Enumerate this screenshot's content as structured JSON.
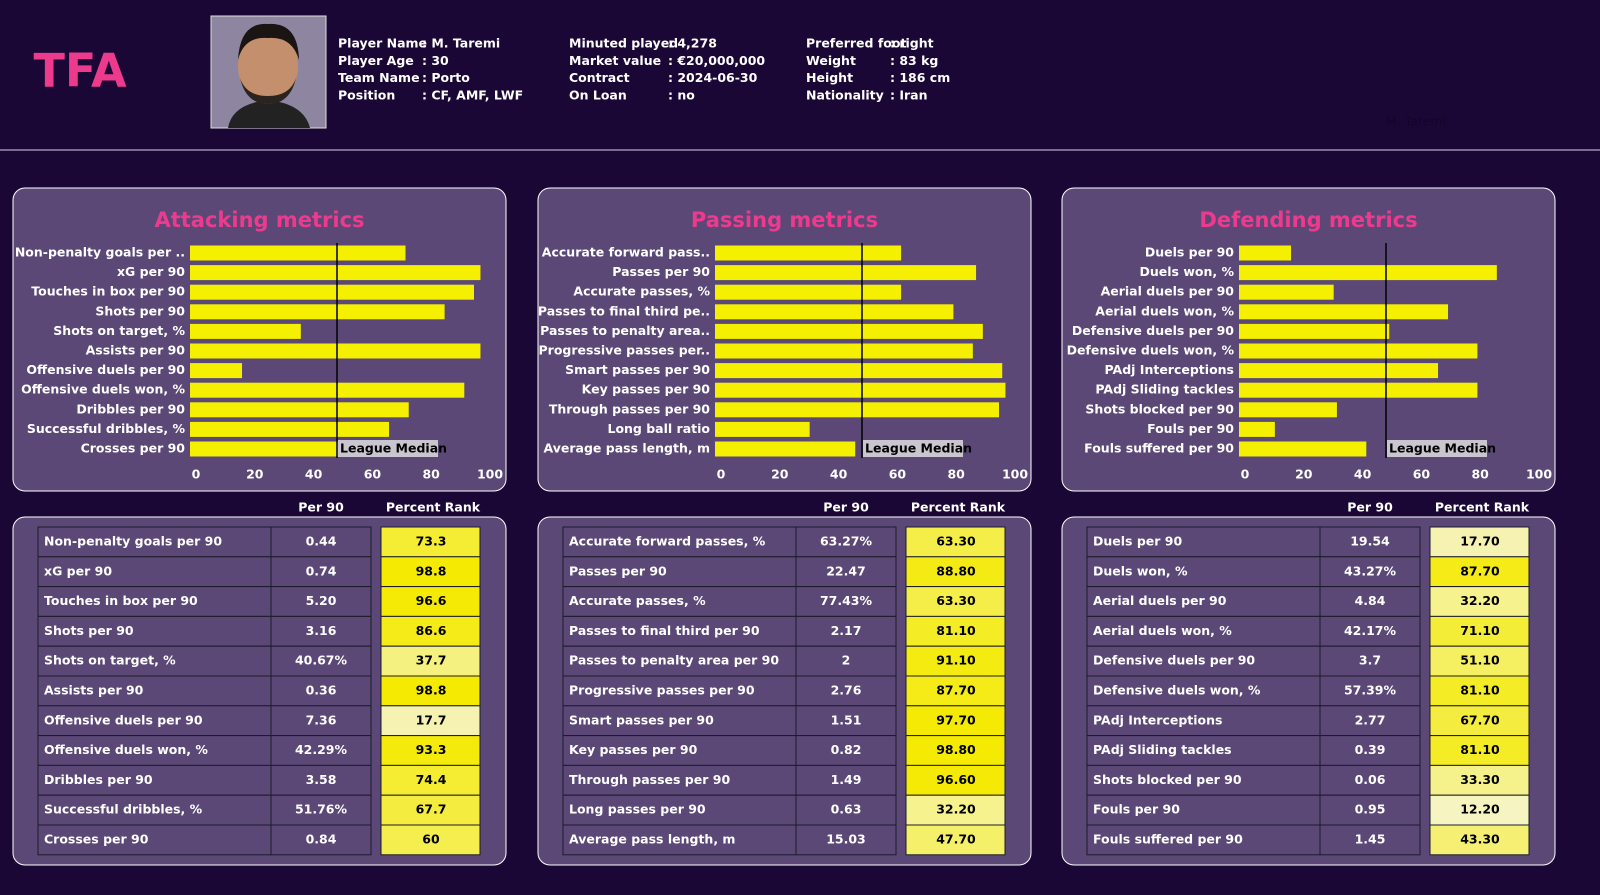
{
  "header": {
    "logo": "TFA",
    "watermark": "M. Taremi",
    "info": [
      [
        {
          "label": "Player Name",
          "value": ": M. Taremi"
        },
        {
          "label": "Player Age",
          "value": ": 30"
        },
        {
          "label": "Team Name",
          "value": ": Porto"
        },
        {
          "label": "Position",
          "value": ": CF, AMF, LWF"
        }
      ],
      [
        {
          "label": "Minuted played",
          "value": ": 4,278"
        },
        {
          "label": "Market value",
          "value": ": €20,000,000"
        },
        {
          "label": "Contract",
          "value": ": 2024-06-30"
        },
        {
          "label": "On Loan",
          "value": ": no"
        }
      ],
      [
        {
          "label": "Preferred foot",
          "value": ": right"
        },
        {
          "label": "Weight",
          "value": ": 83 kg"
        },
        {
          "label": "Height",
          "value": ": 186 cm"
        },
        {
          "label": "Nationality",
          "value": ": Iran"
        }
      ]
    ]
  },
  "chart_data": [
    {
      "type": "bar",
      "title": "Attacking metrics",
      "categories": [
        "Non-penalty goals per ..",
        "xG per 90",
        "Touches in box per 90",
        "Shots per 90",
        "Shots on target, %",
        "Assists per 90",
        "Offensive duels per 90",
        "Offensive duels won, %",
        "Dribbles per 90",
        "Successful dribbles, %",
        "Crosses per 90"
      ],
      "values": [
        73.3,
        98.8,
        96.6,
        86.6,
        37.7,
        98.8,
        17.7,
        93.3,
        74.4,
        67.7,
        60
      ],
      "color": "#f5ef00",
      "xlim": [
        0,
        100
      ],
      "xticks": [
        0,
        20,
        40,
        60,
        80,
        100
      ],
      "annotations": [
        {
          "label": "League Median",
          "x": 50
        }
      ]
    },
    {
      "type": "bar",
      "title": "Passing metrics",
      "categories": [
        "Accurate forward pass..",
        "Passes per 90",
        "Accurate passes, %",
        "Passes to final third pe..",
        "Passes to penalty area..",
        "Progressive passes per..",
        "Smart passes per 90",
        "Key passes per 90",
        "Through passes per 90",
        "Long ball ratio",
        "Average pass length, m"
      ],
      "values": [
        63.3,
        88.8,
        63.3,
        81.1,
        91.1,
        87.7,
        97.7,
        98.8,
        96.6,
        32.2,
        47.7
      ],
      "color": "#f5ef00",
      "xlim": [
        0,
        100
      ],
      "xticks": [
        0,
        20,
        40,
        60,
        80,
        100
      ],
      "annotations": [
        {
          "label": "League Median",
          "x": 50
        }
      ]
    },
    {
      "type": "bar",
      "title": "Defending metrics",
      "categories": [
        "Duels per 90",
        "Duels won, %",
        "Aerial duels per 90",
        "Aerial duels won, %",
        "Defensive duels per 90",
        "Defensive duels won, %",
        "PAdj Interceptions",
        "PAdj Sliding tackles",
        "Shots blocked per 90",
        "Fouls per 90",
        "Fouls suffered per 90"
      ],
      "values": [
        17.7,
        87.7,
        32.2,
        71.1,
        51.1,
        81.1,
        67.7,
        81.1,
        33.3,
        12.2,
        43.3
      ],
      "color": "#f5ef00",
      "xlim": [
        0,
        100
      ],
      "xticks": [
        0,
        20,
        40,
        60,
        80,
        100
      ],
      "annotations": [
        {
          "label": "League Median",
          "x": 50
        }
      ]
    }
  ],
  "tables": [
    {
      "columns": [
        "Per 90",
        "Percent Rank"
      ],
      "rows": [
        [
          "Non-penalty goals per 90",
          "0.44",
          "73.3"
        ],
        [
          "xG per 90",
          "0.74",
          "98.8"
        ],
        [
          "Touches in box per 90",
          "5.20",
          "96.6"
        ],
        [
          "Shots per 90",
          "3.16",
          "86.6"
        ],
        [
          "Shots on target, %",
          "40.67%",
          "37.7"
        ],
        [
          "Assists per 90",
          "0.36",
          "98.8"
        ],
        [
          "Offensive duels per 90",
          "7.36",
          "17.7"
        ],
        [
          "Offensive duels won, %",
          "42.29%",
          "93.3"
        ],
        [
          "Dribbles per 90",
          "3.58",
          "74.4"
        ],
        [
          "Successful dribbles, %",
          "51.76%",
          "67.7"
        ],
        [
          "Crosses per 90",
          "0.84",
          "60"
        ]
      ]
    },
    {
      "columns": [
        "Per 90",
        "Percent Rank"
      ],
      "rows": [
        [
          "Accurate forward passes, %",
          "63.27%",
          "63.30"
        ],
        [
          "Passes per 90",
          "22.47",
          "88.80"
        ],
        [
          "Accurate passes, %",
          "77.43%",
          "63.30"
        ],
        [
          "Passes to final third per 90",
          "2.17",
          "81.10"
        ],
        [
          "Passes to penalty area per 90",
          "2",
          "91.10"
        ],
        [
          "Progressive passes per 90",
          "2.76",
          "87.70"
        ],
        [
          "Smart passes per 90",
          "1.51",
          "97.70"
        ],
        [
          "Key passes per 90",
          "0.82",
          "98.80"
        ],
        [
          "Through passes per 90",
          "1.49",
          "96.60"
        ],
        [
          "Long passes per 90",
          "0.63",
          "32.20"
        ],
        [
          "Average pass length, m",
          "15.03",
          "47.70"
        ]
      ]
    },
    {
      "columns": [
        "Per 90",
        "Percent Rank"
      ],
      "rows": [
        [
          "Duels per 90",
          "19.54",
          "17.70"
        ],
        [
          "Duels won, %",
          "43.27%",
          "87.70"
        ],
        [
          "Aerial duels per 90",
          "4.84",
          "32.20"
        ],
        [
          "Aerial duels won, %",
          "42.17%",
          "71.10"
        ],
        [
          "Defensive duels per 90",
          "3.7",
          "51.10"
        ],
        [
          "Defensive duels won, %",
          "57.39%",
          "81.10"
        ],
        [
          "PAdj Interceptions",
          "2.77",
          "67.70"
        ],
        [
          "PAdj Sliding tackles",
          "0.39",
          "81.10"
        ],
        [
          "Shots blocked per 90",
          "0.06",
          "33.30"
        ],
        [
          "Fouls per 90",
          "0.95",
          "12.20"
        ],
        [
          "Fouls suffered per 90",
          "1.45",
          "43.30"
        ]
      ]
    }
  ]
}
